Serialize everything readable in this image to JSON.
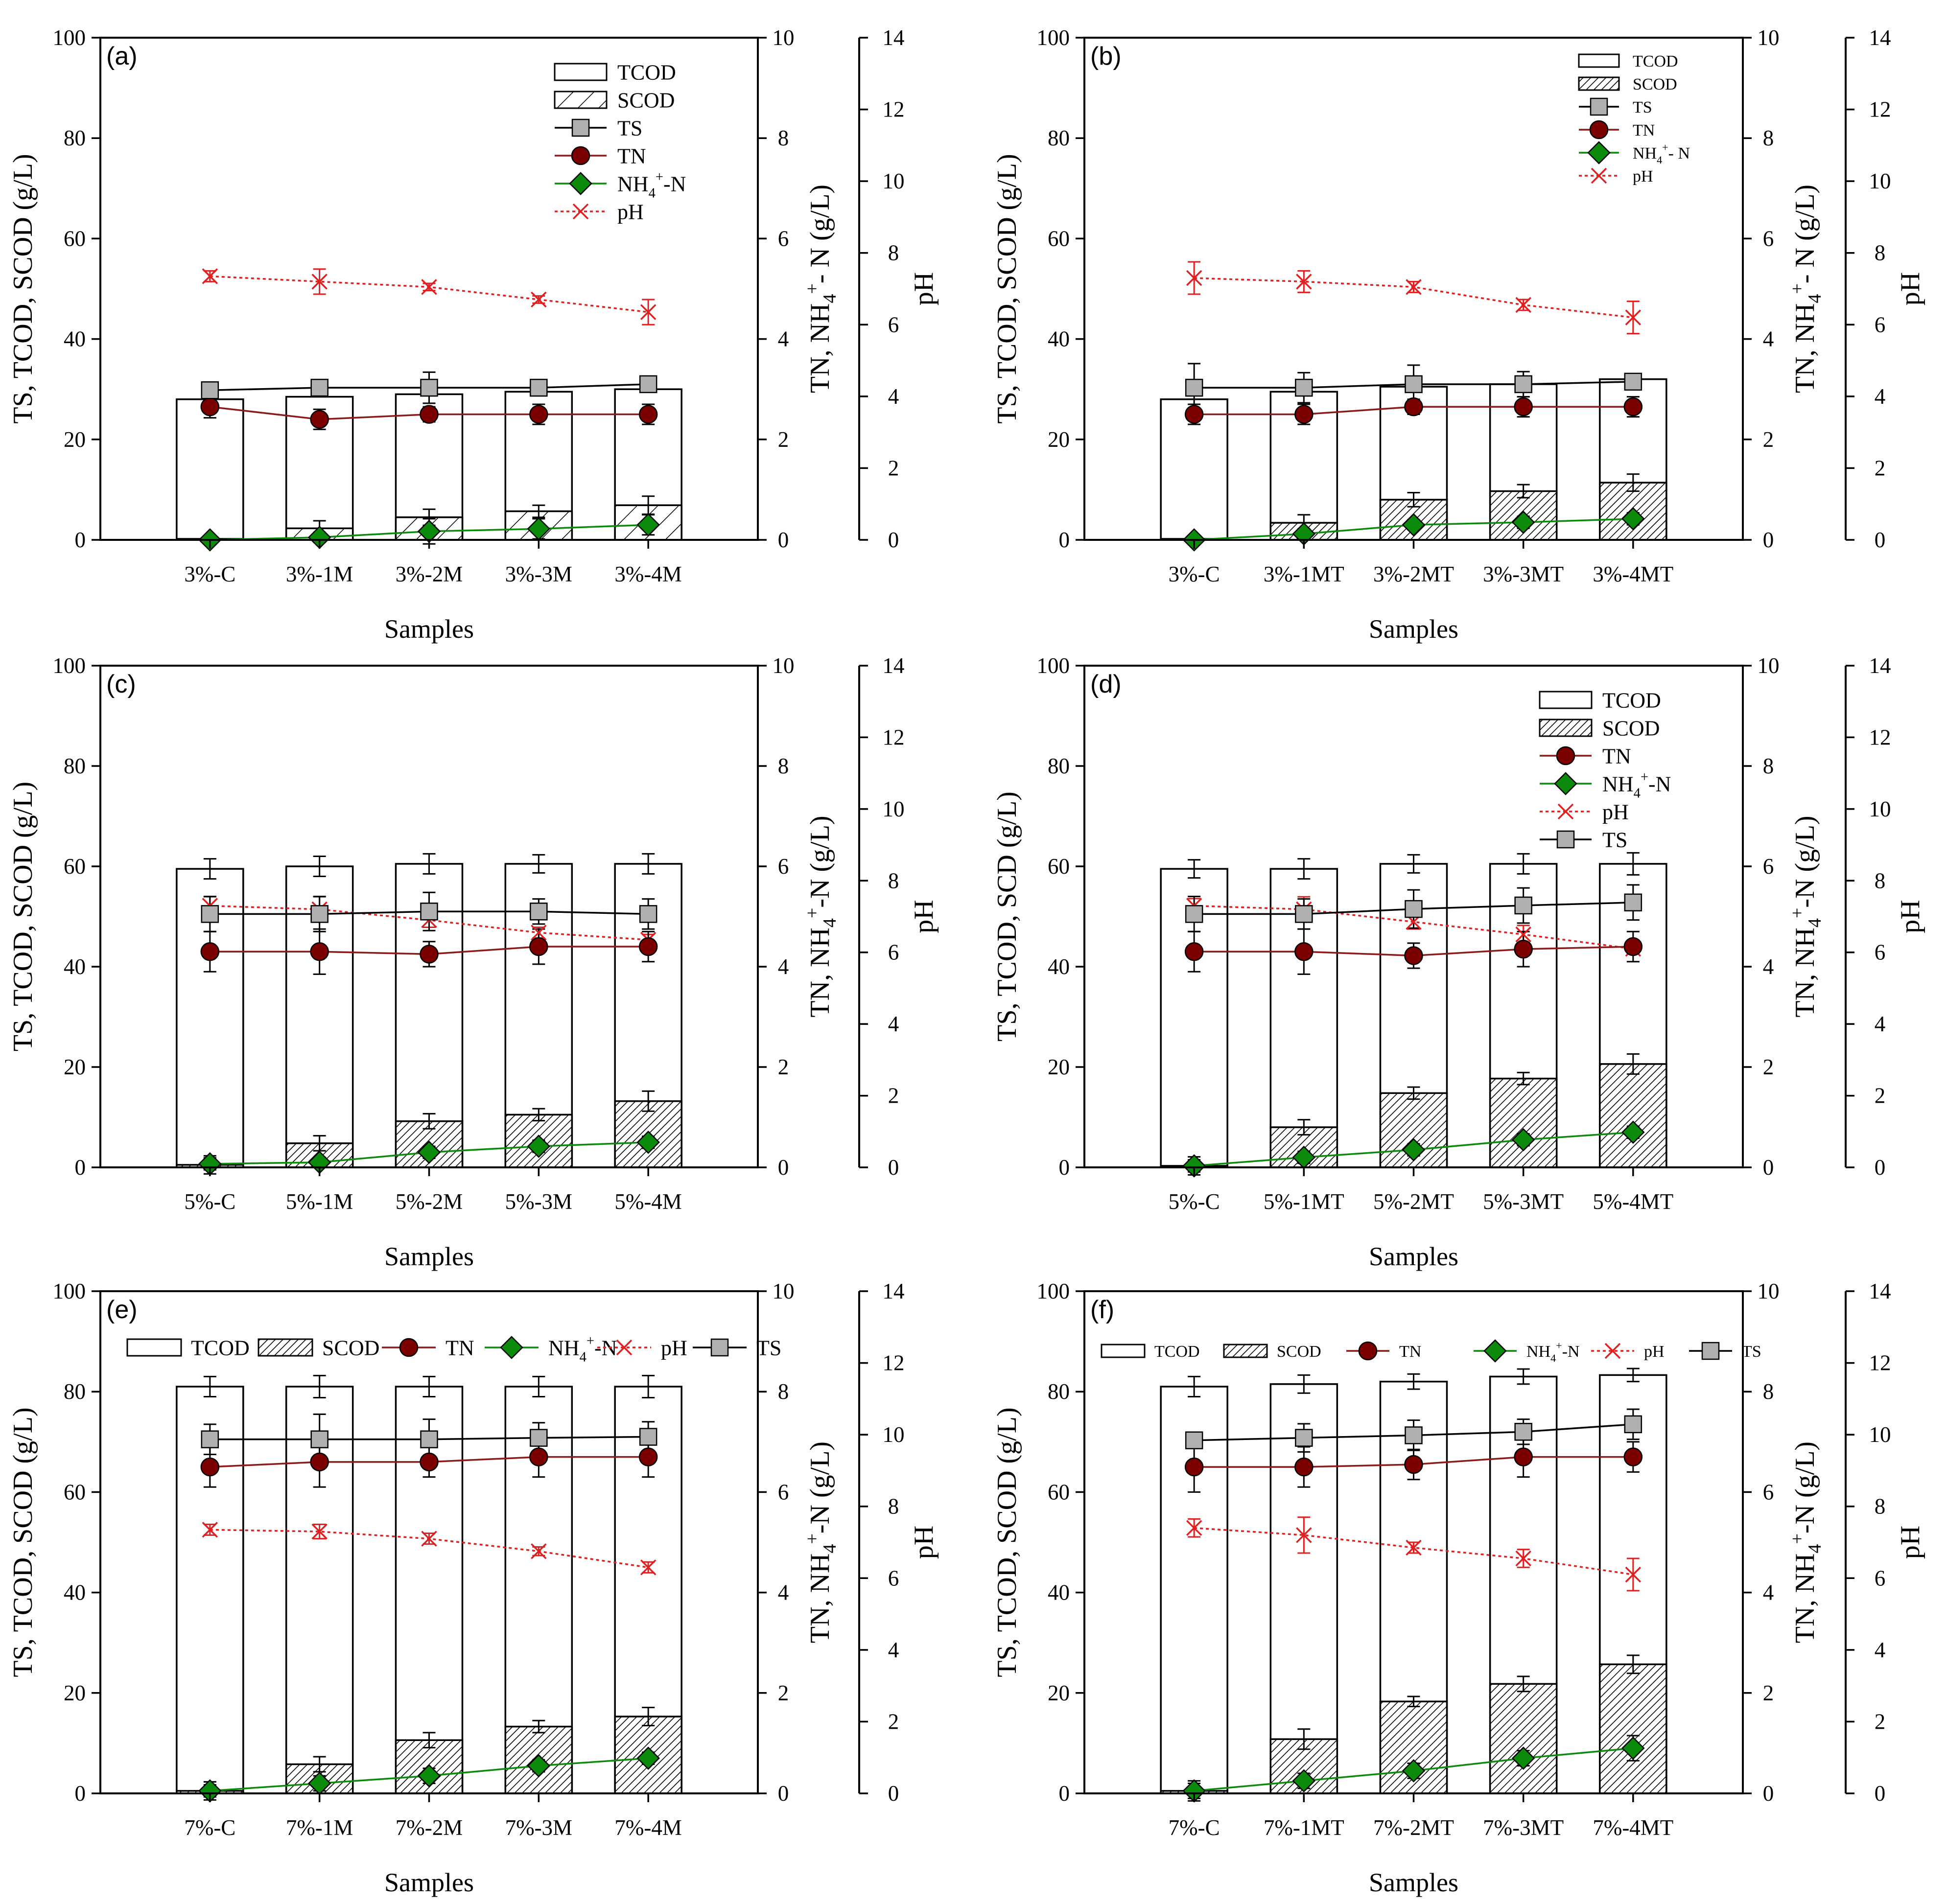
{
  "figure_title": "TS, TCOD, SCOD, TN, NH4+-N and pH of samples",
  "colors": {
    "tn": "#7b0000",
    "tn_line": "#8b1a1a",
    "nh4": "#0b8a0b",
    "ph": "#e02020",
    "ts": "#b0b0b0"
  },
  "chart_data": [
    {
      "id": "a",
      "type": "bar",
      "panel_label": "(a)",
      "xlabel": "Samples",
      "ylabel_left": "TS, TCOD, SCOD (g/L)",
      "ylabel_right1_main": "TN, NH",
      "ylabel_right1_sub": "4",
      "ylabel_right1_sup": "+",
      "ylabel_right1_tail": "- N (g/L)",
      "ylabel_right2": "pH",
      "ylim_left": [
        0,
        100
      ],
      "ylim_right1": [
        0,
        10
      ],
      "ylim_right2": [
        0,
        14
      ],
      "yticks_left": [
        "0",
        "20",
        "40",
        "60",
        "80",
        "100"
      ],
      "yticks_right1": [
        "0",
        "2",
        "4",
        "6",
        "8",
        "10"
      ],
      "yticks_right2": [
        "0",
        "2",
        "4",
        "6",
        "8",
        "10",
        "12",
        "14"
      ],
      "categories": [
        "3%-C",
        "3%-1M",
        "3%-2M",
        "3%-3M",
        "3%-4M"
      ],
      "scod_pattern": "light",
      "legend_layout": "column",
      "legend": {
        "tcod": "TCOD",
        "scod": "SCOD",
        "ts": "TS",
        "tn": "TN",
        "nh4_main": "NH",
        "nh4_sub": "4",
        "nh4_sup": "+",
        "nh4_tail": "-N",
        "ph": "pH"
      },
      "legend_order": [
        "tcod",
        "scod",
        "ts",
        "tn",
        "nh4",
        "ph"
      ],
      "series": [
        {
          "name": "TCOD",
          "axis": "left",
          "values": [
            28,
            28.5,
            29,
            29.5,
            30
          ],
          "errors": [
            0,
            0,
            0,
            0,
            0
          ]
        },
        {
          "name": "SCOD",
          "axis": "left",
          "values": [
            0.2,
            2.3,
            4.5,
            5.7,
            6.9
          ],
          "errors": [
            0,
            1.5,
            1.6,
            1.2,
            1.8
          ]
        },
        {
          "name": "TS",
          "axis": "left",
          "values": [
            29.8,
            30.3,
            30.3,
            30.3,
            31
          ],
          "errors": [
            0.5,
            0.5,
            3.1,
            0.8,
            0.8
          ]
        },
        {
          "name": "TN",
          "axis": "right1",
          "values": [
            2.65,
            2.4,
            2.5,
            2.5,
            2.5
          ],
          "errors": [
            0.22,
            0.2,
            0.15,
            0.2,
            0.2
          ]
        },
        {
          "name": "NH4+-N",
          "axis": "right1",
          "values": [
            0,
            0.05,
            0.17,
            0.22,
            0.3
          ],
          "errors": [
            0.05,
            0.1,
            0.25,
            0.2,
            0.2
          ]
        },
        {
          "name": "pH",
          "axis": "right2",
          "values": [
            7.35,
            7.2,
            7.05,
            6.7,
            6.35
          ],
          "errors": [
            0.15,
            0.35,
            0.1,
            0.1,
            0.35
          ]
        }
      ]
    },
    {
      "id": "b",
      "type": "bar",
      "panel_label": "(b)",
      "xlabel": "Samples",
      "ylabel_left": "TS, TCOD, SCOD (g/L)",
      "ylabel_right1_main": "TN, NH",
      "ylabel_right1_sub": "4",
      "ylabel_right1_sup": "+",
      "ylabel_right1_tail": "- N (g/L)",
      "ylabel_right2": "pH",
      "ylim_left": [
        0,
        100
      ],
      "ylim_right1": [
        0,
        10
      ],
      "ylim_right2": [
        0,
        14
      ],
      "yticks_left": [
        "0",
        "20",
        "40",
        "60",
        "80",
        "100"
      ],
      "yticks_right1": [
        "0",
        "2",
        "4",
        "6",
        "8",
        "10"
      ],
      "yticks_right2": [
        "0",
        "2",
        "4",
        "6",
        "8",
        "10",
        "12",
        "14"
      ],
      "categories": [
        "3%-C",
        "3%-1MT",
        "3%-2MT",
        "3%-3MT",
        "3%-4MT"
      ],
      "scod_pattern": "dense",
      "legend_layout": "column-small",
      "legend": {
        "tcod": "TCOD",
        "scod": "SCOD",
        "ts": "TS",
        "tn": "TN",
        "nh4_main": "NH",
        "nh4_sub": "4",
        "nh4_sup": "+",
        "nh4_tail": "- N",
        "ph": "pH"
      },
      "legend_order": [
        "tcod",
        "scod",
        "ts",
        "tn",
        "nh4",
        "ph"
      ],
      "series": [
        {
          "name": "TCOD",
          "axis": "left",
          "values": [
            28,
            29.5,
            30.5,
            31,
            32
          ],
          "errors": [
            0,
            0,
            0,
            0,
            0
          ]
        },
        {
          "name": "SCOD",
          "axis": "left",
          "values": [
            0.2,
            3.4,
            8,
            9.7,
            11.4
          ],
          "errors": [
            0,
            1.6,
            1.4,
            1.3,
            1.7
          ]
        },
        {
          "name": "TS",
          "axis": "left",
          "values": [
            30.3,
            30.3,
            31,
            31,
            31.5
          ],
          "errors": [
            4.8,
            3,
            3.8,
            2.5,
            1.5
          ]
        },
        {
          "name": "TN",
          "axis": "right1",
          "values": [
            2.5,
            2.5,
            2.65,
            2.65,
            2.65
          ],
          "errors": [
            0.2,
            0.2,
            0.15,
            0.2,
            0.2
          ]
        },
        {
          "name": "NH4+-N",
          "axis": "right1",
          "values": [
            0,
            0.12,
            0.3,
            0.35,
            0.42
          ],
          "errors": [
            0.05,
            0.1,
            0.1,
            0.12,
            0.12
          ]
        },
        {
          "name": "pH",
          "axis": "right2",
          "values": [
            7.3,
            7.2,
            7.05,
            6.55,
            6.2
          ],
          "errors": [
            0.45,
            0.3,
            0.15,
            0.15,
            0.45
          ]
        }
      ]
    },
    {
      "id": "c",
      "type": "bar",
      "panel_label": "(c)",
      "xlabel": "Samples",
      "ylabel_left": "TS, TCOD, SCOD (g/L)",
      "ylabel_right1_main": "TN, NH",
      "ylabel_right1_sub": "4",
      "ylabel_right1_sup": "+",
      "ylabel_right1_tail": "-N (g/L)",
      "ylabel_right2": "pH",
      "ylim_left": [
        0,
        100
      ],
      "ylim_right1": [
        0,
        10
      ],
      "ylim_right2": [
        0,
        14
      ],
      "yticks_left": [
        "0",
        "20",
        "40",
        "60",
        "80",
        "100"
      ],
      "yticks_right1": [
        "0",
        "2",
        "4",
        "6",
        "8",
        "10"
      ],
      "yticks_right2": [
        "0",
        "2",
        "4",
        "6",
        "8",
        "10",
        "12",
        "14"
      ],
      "categories": [
        "5%-C",
        "5%-1M",
        "5%-2M",
        "5%-3M",
        "5%-4M"
      ],
      "scod_pattern": "dense",
      "legend_layout": "none",
      "legend": {},
      "legend_order": [],
      "series": [
        {
          "name": "TCOD",
          "axis": "left",
          "values": [
            59.5,
            60,
            60.5,
            60.5,
            60.5
          ],
          "errors": [
            2,
            2,
            2,
            1.8,
            2
          ]
        },
        {
          "name": "SCOD",
          "axis": "left",
          "values": [
            0.5,
            4.8,
            9.2,
            10.5,
            13.2
          ],
          "errors": [
            1.8,
            1.5,
            1.5,
            1.2,
            2
          ]
        },
        {
          "name": "TS",
          "axis": "left",
          "values": [
            50.5,
            50.5,
            51,
            51,
            50.5
          ],
          "errors": [
            3.5,
            3.5,
            3.8,
            2.5,
            3
          ]
        },
        {
          "name": "TN",
          "axis": "right1",
          "values": [
            4.3,
            4.3,
            4.25,
            4.4,
            4.4
          ],
          "errors": [
            0.4,
            0.45,
            0.25,
            0.35,
            0.3
          ]
        },
        {
          "name": "NH4+-N",
          "axis": "right1",
          "values": [
            0.07,
            0.1,
            0.3,
            0.42,
            0.5
          ],
          "errors": [
            0.12,
            0.1,
            0.12,
            0.12,
            0.12
          ]
        },
        {
          "name": "pH",
          "axis": "right2",
          "values": [
            7.3,
            7.2,
            6.9,
            6.55,
            6.35
          ],
          "errors": [
            0.25,
            0.35,
            0.2,
            0.15,
            0.15
          ]
        }
      ]
    },
    {
      "id": "d",
      "type": "bar",
      "panel_label": "(d)",
      "xlabel": "Samples",
      "ylabel_left": "TS, TCOD, SCD (g/L)",
      "ylabel_right1_main": "TN, NH",
      "ylabel_right1_sub": "4",
      "ylabel_right1_sup": "+",
      "ylabel_right1_tail": "-N (g/L)",
      "ylabel_right2": "pH",
      "ylim_left": [
        0,
        100
      ],
      "ylim_right1": [
        0,
        10
      ],
      "ylim_right2": [
        0,
        14
      ],
      "yticks_left": [
        "0",
        "20",
        "40",
        "60",
        "80",
        "100"
      ],
      "yticks_right1": [
        "0",
        "2",
        "4",
        "6",
        "8",
        "10"
      ],
      "yticks_right2": [
        "0",
        "2",
        "4",
        "6",
        "8",
        "10",
        "12",
        "14"
      ],
      "categories": [
        "5%-C",
        "5%-1MT",
        "5%-2MT",
        "5%-3MT",
        "5%-4MT"
      ],
      "scod_pattern": "dense",
      "legend_layout": "column",
      "legend": {
        "tcod": "TCOD",
        "scod": "SCOD",
        "tn": "TN",
        "nh4_main": "NH",
        "nh4_sub": "4",
        "nh4_sup": "+",
        "nh4_tail": "-N",
        "ph": "pH",
        "ts": "TS"
      },
      "legend_order": [
        "tcod",
        "scod",
        "tn",
        "nh4",
        "ph",
        "ts"
      ],
      "series": [
        {
          "name": "TCOD",
          "axis": "left",
          "values": [
            59.5,
            59.5,
            60.5,
            60.5,
            60.5
          ],
          "errors": [
            1.8,
            2,
            1.8,
            2,
            2.2
          ]
        },
        {
          "name": "SCOD",
          "axis": "left",
          "values": [
            0.3,
            8,
            14.8,
            17.7,
            20.6
          ],
          "errors": [
            1.8,
            1.5,
            1.2,
            1.2,
            2
          ]
        },
        {
          "name": "TS",
          "axis": "left",
          "values": [
            50.5,
            50.5,
            51.5,
            52.2,
            52.8
          ],
          "errors": [
            3.5,
            3,
            3.8,
            3.5,
            3.5
          ]
        },
        {
          "name": "TN",
          "axis": "right1",
          "values": [
            4.3,
            4.3,
            4.22,
            4.35,
            4.4
          ],
          "errors": [
            0.4,
            0.45,
            0.25,
            0.35,
            0.3
          ]
        },
        {
          "name": "NH4+-N",
          "axis": "right1",
          "values": [
            0.03,
            0.2,
            0.35,
            0.55,
            0.7
          ],
          "errors": [
            0.12,
            0.12,
            0.12,
            0.12,
            0.12
          ]
        },
        {
          "name": "pH",
          "axis": "right2",
          "values": [
            7.3,
            7.2,
            6.85,
            6.5,
            6.1
          ],
          "errors": [
            0.2,
            0.35,
            0.2,
            0.25,
            0.15
          ]
        }
      ]
    },
    {
      "id": "e",
      "type": "bar",
      "panel_label": "(e)",
      "xlabel": "Samples",
      "ylabel_left": "TS, TCOD, SCOD (g/L)",
      "ylabel_right1_main": "TN, NH",
      "ylabel_right1_sub": "4",
      "ylabel_right1_sup": "+",
      "ylabel_right1_tail": "-N (g/L)",
      "ylabel_right2": "pH",
      "ylim_left": [
        0,
        100
      ],
      "ylim_right1": [
        0,
        10
      ],
      "ylim_right2": [
        0,
        14
      ],
      "yticks_left": [
        "0",
        "20",
        "40",
        "60",
        "80",
        "100"
      ],
      "yticks_right1": [
        "0",
        "2",
        "4",
        "6",
        "8",
        "10"
      ],
      "yticks_right2": [
        "0",
        "2",
        "4",
        "6",
        "8",
        "10",
        "12",
        "14"
      ],
      "categories": [
        "7%-C",
        "7%-1M",
        "7%-2M",
        "7%-3M",
        "7%-4M"
      ],
      "scod_pattern": "dense",
      "legend_layout": "row",
      "legend": {
        "tcod": "TCOD",
        "scod": "SCOD",
        "tn": "TN",
        "nh4_main": "NH",
        "nh4_sub": "4",
        "nh4_sup": "+",
        "nh4_tail": "-N",
        "ph": "pH",
        "ts": "TS"
      },
      "legend_order": [
        "tcod",
        "scod",
        "tn",
        "nh4",
        "ph",
        "ts"
      ],
      "series": [
        {
          "name": "TCOD",
          "axis": "left",
          "values": [
            81,
            81,
            81,
            81,
            81
          ],
          "errors": [
            2,
            2.2,
            2,
            2,
            2.2
          ]
        },
        {
          "name": "SCOD",
          "axis": "left",
          "values": [
            0.5,
            5.8,
            10.6,
            13.3,
            15.3
          ],
          "errors": [
            1.8,
            1.5,
            1.5,
            1.2,
            1.8
          ]
        },
        {
          "name": "TS",
          "axis": "left",
          "values": [
            70.5,
            70.5,
            70.5,
            70.8,
            71
          ],
          "errors": [
            3,
            5,
            4,
            3,
            3
          ]
        },
        {
          "name": "TN",
          "axis": "right1",
          "values": [
            6.5,
            6.6,
            6.6,
            6.7,
            6.7
          ],
          "errors": [
            0.4,
            0.5,
            0.3,
            0.4,
            0.4
          ]
        },
        {
          "name": "NH4+-N",
          "axis": "right1",
          "values": [
            0.05,
            0.2,
            0.35,
            0.55,
            0.7
          ],
          "errors": [
            0.12,
            0.15,
            0.15,
            0.12,
            0.12
          ]
        },
        {
          "name": "pH",
          "axis": "right2",
          "values": [
            7.35,
            7.3,
            7.1,
            6.75,
            6.3
          ],
          "errors": [
            0.15,
            0.2,
            0.15,
            0.12,
            0.15
          ]
        }
      ]
    },
    {
      "id": "f",
      "type": "bar",
      "panel_label": "(f)",
      "xlabel": "Samples",
      "ylabel_left": "TS, TCOD, SCOD (g/L)",
      "ylabel_right1_main": "TN, NH",
      "ylabel_right1_sub": "4",
      "ylabel_right1_sup": "+",
      "ylabel_right1_tail": "-N (g/L)",
      "ylabel_right2": "pH",
      "ylim_left": [
        0,
        100
      ],
      "ylim_right1": [
        0,
        10
      ],
      "ylim_right2": [
        0,
        14
      ],
      "yticks_left": [
        "0",
        "20",
        "40",
        "60",
        "80",
        "100"
      ],
      "yticks_right1": [
        "0",
        "2",
        "4",
        "6",
        "8",
        "10"
      ],
      "yticks_right2": [
        "0",
        "2",
        "4",
        "6",
        "8",
        "10",
        "12",
        "14"
      ],
      "categories": [
        "7%-C",
        "7%-1MT",
        "7%-2MT",
        "7%-3MT",
        "7%-4MT"
      ],
      "scod_pattern": "dense",
      "legend_layout": "row-small",
      "legend": {
        "tcod": "TCOD",
        "scod": "SCOD",
        "tn": "TN",
        "nh4_main": "NH",
        "nh4_sub": "4",
        "nh4_sup": "+",
        "nh4_tail": "-N",
        "ph": "pH",
        "ts": "TS"
      },
      "legend_order": [
        "tcod",
        "scod",
        "tn",
        "nh4",
        "ph",
        "ts"
      ],
      "series": [
        {
          "name": "TCOD",
          "axis": "left",
          "values": [
            81,
            81.5,
            82,
            83,
            83.3
          ],
          "errors": [
            2,
            1.8,
            1.5,
            1.5,
            1.3
          ]
        },
        {
          "name": "SCOD",
          "axis": "left",
          "values": [
            0.5,
            10.8,
            18.3,
            21.8,
            25.7
          ],
          "errors": [
            2,
            2,
            1,
            1.5,
            1.8
          ]
        },
        {
          "name": "TS",
          "axis": "left",
          "values": [
            70.3,
            70.8,
            71.3,
            72,
            73.5
          ],
          "errors": [
            1.3,
            2.8,
            3,
            2.5,
            3
          ]
        },
        {
          "name": "TN",
          "axis": "right1",
          "values": [
            6.5,
            6.5,
            6.55,
            6.7,
            6.7
          ],
          "errors": [
            0.5,
            0.4,
            0.3,
            0.4,
            0.3
          ]
        },
        {
          "name": "NH4+-N",
          "axis": "right1",
          "values": [
            0.05,
            0.25,
            0.45,
            0.7,
            0.9
          ],
          "errors": [
            0.15,
            0.15,
            0.15,
            0.15,
            0.25
          ]
        },
        {
          "name": "pH",
          "axis": "right2",
          "values": [
            7.4,
            7.2,
            6.85,
            6.55,
            6.1
          ],
          "errors": [
            0.25,
            0.5,
            0.15,
            0.25,
            0.45
          ]
        }
      ]
    }
  ]
}
